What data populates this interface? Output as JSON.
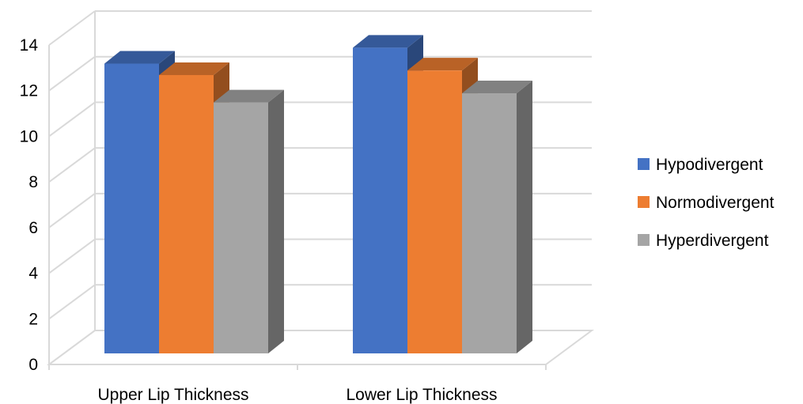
{
  "chart_data": {
    "type": "bar",
    "style": "3d-clustered-column",
    "categories": [
      "Upper Lip Thickness",
      "Lower Lip Thickness"
    ],
    "series": [
      {
        "name": "Hypodivergent",
        "values": [
          12.7,
          13.4
        ],
        "color": "#4472C4"
      },
      {
        "name": "Normodivergent",
        "values": [
          12.2,
          12.4
        ],
        "color": "#ED7D31"
      },
      {
        "name": "Hyperdivergent",
        "values": [
          11.0,
          11.4
        ],
        "color": "#A5A5A5"
      }
    ],
    "ylim": [
      0,
      14
    ],
    "yticks": [
      0,
      2,
      4,
      6,
      8,
      10,
      12,
      14
    ],
    "ytick_labels": [
      "0",
      "2",
      "4",
      "6",
      "8",
      "10",
      "12",
      "14"
    ],
    "grid": true,
    "legend_position": "right"
  }
}
